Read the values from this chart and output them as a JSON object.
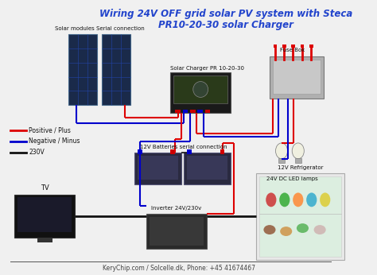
{
  "title_line1": "Wiring 24V OFF grid solar PV system with Steca",
  "title_line2": "PR10-20-30 solar Charger",
  "title_color": "#2244cc",
  "title_fontsize": 8.5,
  "bg_color": "#f0f0f0",
  "legend_items": [
    {
      "label": "Positive / Plus",
      "color": "#dd0000"
    },
    {
      "label": "Negative / Minus",
      "color": "#0000cc"
    },
    {
      "label": "230V",
      "color": "#111111"
    }
  ],
  "labels": {
    "solar_modules": "Solar modules Serial connection",
    "solar_charger": "Solar Charger PR 10-20-30",
    "fuse_box": "Fuse Box",
    "batteries": "12V Batteries serial connection",
    "led_lamps": "24V DC LED lamps",
    "tv": "TV",
    "inverter": "Inverter 24V/230v",
    "refrigerator": "12V Refrigerator",
    "footer": "KeryChip.com / Solcelle.dk, Phone: +45 41674467"
  },
  "footer_fontsize": 5.5,
  "label_fontsize": 5.0,
  "legend_fontsize": 5.5
}
